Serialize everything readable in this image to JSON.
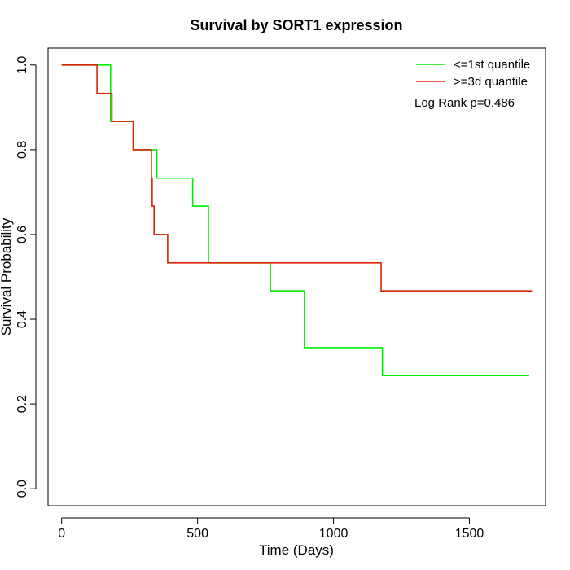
{
  "chart_data": {
    "type": "line",
    "title": "Survival by SORT1 expression",
    "xlabel": "Time (Days)",
    "ylabel": "Survival Probability",
    "xlim": [
      -50,
      1780
    ],
    "ylim": [
      -0.04,
      1.04
    ],
    "x_ticks": [
      0,
      500,
      1000,
      1500
    ],
    "y_ticks": [
      0.0,
      0.2,
      0.4,
      0.6,
      0.8,
      1.0
    ],
    "x_tick_labels": [
      "0",
      "500",
      "1000",
      "1500"
    ],
    "y_tick_labels": [
      "0.0",
      "0.2",
      "0.4",
      "0.6",
      "0.8",
      "1.0"
    ],
    "grid": false,
    "legend_position": "top-right",
    "annotation": "Log Rank p=0.486",
    "series": [
      {
        "name": "<=1st quantile",
        "color": "#00ee00",
        "step": true,
        "x": [
          0,
          170,
          180,
          255,
          265,
          345,
          350,
          480,
          482,
          535,
          540,
          765,
          768,
          887,
          893,
          1175,
          1180,
          1720
        ],
        "y": [
          1.0,
          1.0,
          0.867,
          0.867,
          0.8,
          0.8,
          0.733,
          0.733,
          0.667,
          0.667,
          0.533,
          0.533,
          0.467,
          0.467,
          0.333,
          0.333,
          0.267,
          0.267
        ]
      },
      {
        "name": ">=3d quantile",
        "color": "#dd2200",
        "step": true,
        "x": [
          0,
          130,
          185,
          263,
          330,
          333,
          340,
          390,
          1175,
          1730
        ],
        "y": [
          1.0,
          0.933,
          0.867,
          0.8,
          0.733,
          0.667,
          0.6,
          0.533,
          0.467,
          0.467
        ]
      }
    ]
  }
}
